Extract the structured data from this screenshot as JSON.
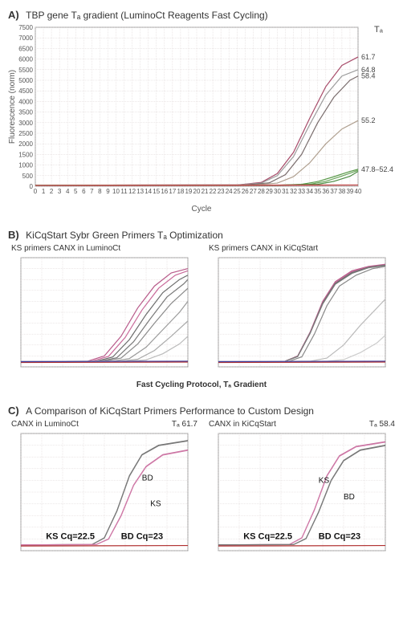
{
  "panelA": {
    "label": "A)",
    "title": "TBP gene Tₐ gradient (LuminoCt Reagents Fast Cycling)",
    "ylabel": "Fluorescence (norm)",
    "xlabel": "Cycle",
    "ta_header": "Tₐ",
    "ylim": [
      0,
      7500
    ],
    "ytick_step": 500,
    "xlim": [
      0,
      40
    ],
    "xtick_step": 1,
    "background": "#ffffff",
    "grid_color": "#d9d0d0",
    "annotations": [
      {
        "y": 6100,
        "label": "61.7"
      },
      {
        "y": 5500,
        "label": "64.8"
      },
      {
        "y": 5200,
        "label": "58.4"
      },
      {
        "y": 3100,
        "label": "55.2"
      },
      {
        "y": 800,
        "label": "47.8–52.4"
      }
    ],
    "series": [
      {
        "color": "#a84c6a",
        "pts": [
          [
            0,
            50
          ],
          [
            25,
            60
          ],
          [
            28,
            180
          ],
          [
            30,
            600
          ],
          [
            32,
            1600
          ],
          [
            34,
            3200
          ],
          [
            36,
            4700
          ],
          [
            38,
            5700
          ],
          [
            40,
            6100
          ]
        ]
      },
      {
        "color": "#9c9c9c",
        "pts": [
          [
            0,
            50
          ],
          [
            25,
            60
          ],
          [
            28,
            150
          ],
          [
            30,
            500
          ],
          [
            32,
            1400
          ],
          [
            34,
            2900
          ],
          [
            36,
            4300
          ],
          [
            38,
            5200
          ],
          [
            40,
            5500
          ]
        ]
      },
      {
        "color": "#7a6d6d",
        "pts": [
          [
            0,
            50
          ],
          [
            26,
            60
          ],
          [
            29,
            160
          ],
          [
            31,
            550
          ],
          [
            33,
            1500
          ],
          [
            35,
            3000
          ],
          [
            37,
            4200
          ],
          [
            39,
            5000
          ],
          [
            40,
            5200
          ]
        ]
      },
      {
        "color": "#b0a090",
        "pts": [
          [
            0,
            50
          ],
          [
            27,
            60
          ],
          [
            30,
            150
          ],
          [
            32,
            450
          ],
          [
            34,
            1100
          ],
          [
            36,
            2000
          ],
          [
            38,
            2700
          ],
          [
            40,
            3100
          ]
        ]
      },
      {
        "color": "#5a9a4a",
        "pts": [
          [
            0,
            40
          ],
          [
            30,
            50
          ],
          [
            33,
            90
          ],
          [
            35,
            220
          ],
          [
            37,
            450
          ],
          [
            39,
            700
          ],
          [
            40,
            800
          ]
        ]
      },
      {
        "color": "#6aa55a",
        "pts": [
          [
            0,
            40
          ],
          [
            30,
            50
          ],
          [
            34,
            90
          ],
          [
            36,
            230
          ],
          [
            38,
            480
          ],
          [
            40,
            750
          ]
        ]
      },
      {
        "color": "#4d8d44",
        "pts": [
          [
            0,
            40
          ],
          [
            31,
            50
          ],
          [
            35,
            90
          ],
          [
            37,
            230
          ],
          [
            39,
            470
          ],
          [
            40,
            700
          ]
        ]
      },
      {
        "color": "#b83a3a",
        "pts": [
          [
            0,
            40
          ],
          [
            40,
            60
          ]
        ]
      },
      {
        "color": "#c04545",
        "pts": [
          [
            0,
            35
          ],
          [
            40,
            55
          ]
        ]
      }
    ]
  },
  "panelB": {
    "label": "B)",
    "title": "KiCqStart Sybr Green Primers Tₐ Optimization",
    "left_subtitle": "KS primers CANX in LuminoCt",
    "right_subtitle": "KS primers CANX in KiCqStart",
    "xlabel": "Fast Cycling Protocol, Tₐ Gradient",
    "ylim": [
      0,
      5000
    ],
    "xlim": [
      0,
      40
    ],
    "background": "#ffffff",
    "grid_color": "#e2dada",
    "left_series": [
      {
        "color": "#b85a8a",
        "pts": [
          [
            0,
            250
          ],
          [
            16,
            260
          ],
          [
            20,
            500
          ],
          [
            24,
            1400
          ],
          [
            28,
            2700
          ],
          [
            32,
            3700
          ],
          [
            36,
            4300
          ],
          [
            40,
            4500
          ]
        ]
      },
      {
        "color": "#c96a9a",
        "pts": [
          [
            0,
            250
          ],
          [
            17,
            260
          ],
          [
            21,
            480
          ],
          [
            25,
            1350
          ],
          [
            29,
            2600
          ],
          [
            33,
            3600
          ],
          [
            37,
            4200
          ],
          [
            40,
            4400
          ]
        ]
      },
      {
        "color": "#6b6b6b",
        "pts": [
          [
            0,
            250
          ],
          [
            18,
            260
          ],
          [
            22,
            450
          ],
          [
            26,
            1250
          ],
          [
            30,
            2400
          ],
          [
            34,
            3400
          ],
          [
            38,
            4000
          ],
          [
            40,
            4200
          ]
        ]
      },
      {
        "color": "#7a7a7a",
        "pts": [
          [
            0,
            250
          ],
          [
            19,
            260
          ],
          [
            23,
            420
          ],
          [
            27,
            1150
          ],
          [
            31,
            2200
          ],
          [
            35,
            3200
          ],
          [
            39,
            3800
          ],
          [
            40,
            4000
          ]
        ]
      },
      {
        "color": "#8a8a8a",
        "pts": [
          [
            0,
            250
          ],
          [
            20,
            260
          ],
          [
            24,
            400
          ],
          [
            28,
            1050
          ],
          [
            32,
            2000
          ],
          [
            36,
            2900
          ],
          [
            40,
            3600
          ]
        ]
      },
      {
        "color": "#9a9a9a",
        "pts": [
          [
            0,
            250
          ],
          [
            22,
            260
          ],
          [
            26,
            380
          ],
          [
            30,
            900
          ],
          [
            34,
            1700
          ],
          [
            38,
            2500
          ],
          [
            40,
            3000
          ]
        ]
      },
      {
        "color": "#aaaaaa",
        "pts": [
          [
            0,
            250
          ],
          [
            24,
            260
          ],
          [
            28,
            350
          ],
          [
            32,
            750
          ],
          [
            36,
            1400
          ],
          [
            40,
            2100
          ]
        ]
      },
      {
        "color": "#bbbbbb",
        "pts": [
          [
            0,
            250
          ],
          [
            26,
            260
          ],
          [
            30,
            320
          ],
          [
            34,
            600
          ],
          [
            38,
            1050
          ],
          [
            40,
            1400
          ]
        ]
      },
      {
        "color": "#b03030",
        "pts": [
          [
            0,
            200
          ],
          [
            40,
            220
          ]
        ]
      },
      {
        "color": "#4040a0",
        "pts": [
          [
            0,
            240
          ],
          [
            40,
            260
          ]
        ]
      }
    ],
    "right_series": [
      {
        "color": "#b85a8a",
        "pts": [
          [
            0,
            250
          ],
          [
            16,
            260
          ],
          [
            19,
            500
          ],
          [
            22,
            1600
          ],
          [
            25,
            3000
          ],
          [
            28,
            3900
          ],
          [
            32,
            4400
          ],
          [
            36,
            4600
          ],
          [
            40,
            4700
          ]
        ]
      },
      {
        "color": "#c96a9a",
        "pts": [
          [
            0,
            250
          ],
          [
            16,
            260
          ],
          [
            19,
            490
          ],
          [
            22,
            1580
          ],
          [
            25,
            2950
          ],
          [
            28,
            3850
          ],
          [
            32,
            4350
          ],
          [
            36,
            4580
          ],
          [
            40,
            4680
          ]
        ]
      },
      {
        "color": "#6b6b6b",
        "pts": [
          [
            0,
            250
          ],
          [
            16,
            260
          ],
          [
            19,
            480
          ],
          [
            22,
            1560
          ],
          [
            25,
            2920
          ],
          [
            28,
            3820
          ],
          [
            32,
            4320
          ],
          [
            36,
            4560
          ],
          [
            40,
            4660
          ]
        ]
      },
      {
        "color": "#7a7a7a",
        "pts": [
          [
            0,
            250
          ],
          [
            16,
            260
          ],
          [
            19,
            470
          ],
          [
            22,
            1540
          ],
          [
            25,
            2880
          ],
          [
            28,
            3780
          ],
          [
            32,
            4280
          ],
          [
            36,
            4540
          ],
          [
            40,
            4640
          ]
        ]
      },
      {
        "color": "#8a8a8a",
        "pts": [
          [
            0,
            250
          ],
          [
            17,
            260
          ],
          [
            20,
            460
          ],
          [
            23,
            1500
          ],
          [
            26,
            2800
          ],
          [
            29,
            3700
          ],
          [
            33,
            4200
          ],
          [
            37,
            4500
          ],
          [
            40,
            4600
          ]
        ]
      },
      {
        "color": "#bbbbbb",
        "pts": [
          [
            0,
            250
          ],
          [
            22,
            260
          ],
          [
            26,
            400
          ],
          [
            30,
            1000
          ],
          [
            34,
            1900
          ],
          [
            38,
            2700
          ],
          [
            40,
            3100
          ]
        ]
      },
      {
        "color": "#cccccc",
        "pts": [
          [
            0,
            250
          ],
          [
            26,
            260
          ],
          [
            30,
            330
          ],
          [
            34,
            650
          ],
          [
            38,
            1100
          ],
          [
            40,
            1450
          ]
        ]
      },
      {
        "color": "#b03030",
        "pts": [
          [
            0,
            200
          ],
          [
            40,
            220
          ]
        ]
      },
      {
        "color": "#4040a0",
        "pts": [
          [
            0,
            240
          ],
          [
            40,
            260
          ]
        ]
      }
    ]
  },
  "panelC": {
    "label": "C)",
    "title": "A Comparison of KiCqStart Primers Performance to Custom Design",
    "left_subtitle": "CANX in LuminoCt",
    "right_subtitle": "CANX in KiCqStart",
    "left_ta": "Tₐ 61.7",
    "right_ta": "Tₐ 58.4",
    "ylim": [
      0,
      5000
    ],
    "xlim": [
      0,
      40
    ],
    "background": "#ffffff",
    "grid_color": "#e2dada",
    "left_labels": {
      "bd": "BD",
      "ks": "KS",
      "ks_cq": "KS Cq=22.5",
      "bd_cq": "BD Cq=23"
    },
    "right_labels": {
      "bd": "BD",
      "ks": "KS",
      "ks_cq": "KS Cq=22.5",
      "bd_cq": "BD Cq=23"
    },
    "left_series": [
      {
        "color": "#6e6e6e",
        "label": "BD",
        "pts": [
          [
            0,
            250
          ],
          [
            17,
            260
          ],
          [
            20,
            550
          ],
          [
            23,
            1700
          ],
          [
            26,
            3200
          ],
          [
            29,
            4100
          ],
          [
            33,
            4500
          ],
          [
            40,
            4700
          ]
        ]
      },
      {
        "color": "#7a7a7a",
        "pts": [
          [
            0,
            250
          ],
          [
            17,
            260
          ],
          [
            20,
            540
          ],
          [
            23,
            1680
          ],
          [
            26,
            3180
          ],
          [
            29,
            4080
          ],
          [
            33,
            4480
          ],
          [
            40,
            4680
          ]
        ]
      },
      {
        "color": "#c46a9a",
        "label": "KS",
        "pts": [
          [
            0,
            250
          ],
          [
            18,
            260
          ],
          [
            21,
            500
          ],
          [
            24,
            1500
          ],
          [
            27,
            2800
          ],
          [
            30,
            3600
          ],
          [
            34,
            4100
          ],
          [
            40,
            4300
          ]
        ]
      },
      {
        "color": "#d07aa8",
        "pts": [
          [
            0,
            250
          ],
          [
            18,
            260
          ],
          [
            21,
            490
          ],
          [
            24,
            1480
          ],
          [
            27,
            2780
          ],
          [
            30,
            3580
          ],
          [
            34,
            4080
          ],
          [
            40,
            4280
          ]
        ]
      },
      {
        "color": "#b03030",
        "pts": [
          [
            0,
            200
          ],
          [
            40,
            220
          ]
        ]
      }
    ],
    "right_series": [
      {
        "color": "#c46a9a",
        "label": "KS",
        "pts": [
          [
            0,
            250
          ],
          [
            17,
            260
          ],
          [
            20,
            550
          ],
          [
            23,
            1750
          ],
          [
            26,
            3200
          ],
          [
            29,
            4050
          ],
          [
            33,
            4450
          ],
          [
            40,
            4650
          ]
        ]
      },
      {
        "color": "#d07aa8",
        "pts": [
          [
            0,
            250
          ],
          [
            17,
            260
          ],
          [
            20,
            540
          ],
          [
            23,
            1730
          ],
          [
            26,
            3180
          ],
          [
            29,
            4030
          ],
          [
            33,
            4430
          ],
          [
            40,
            4630
          ]
        ]
      },
      {
        "color": "#6e6e6e",
        "label": "BD",
        "pts": [
          [
            0,
            250
          ],
          [
            18,
            260
          ],
          [
            21,
            520
          ],
          [
            24,
            1650
          ],
          [
            27,
            3000
          ],
          [
            30,
            3850
          ],
          [
            34,
            4300
          ],
          [
            40,
            4500
          ]
        ]
      },
      {
        "color": "#7a7a7a",
        "pts": [
          [
            0,
            250
          ],
          [
            18,
            260
          ],
          [
            21,
            510
          ],
          [
            24,
            1630
          ],
          [
            27,
            2980
          ],
          [
            30,
            3830
          ],
          [
            34,
            4280
          ],
          [
            40,
            4480
          ]
        ]
      },
      {
        "color": "#b03030",
        "pts": [
          [
            0,
            200
          ],
          [
            40,
            220
          ]
        ]
      }
    ]
  }
}
